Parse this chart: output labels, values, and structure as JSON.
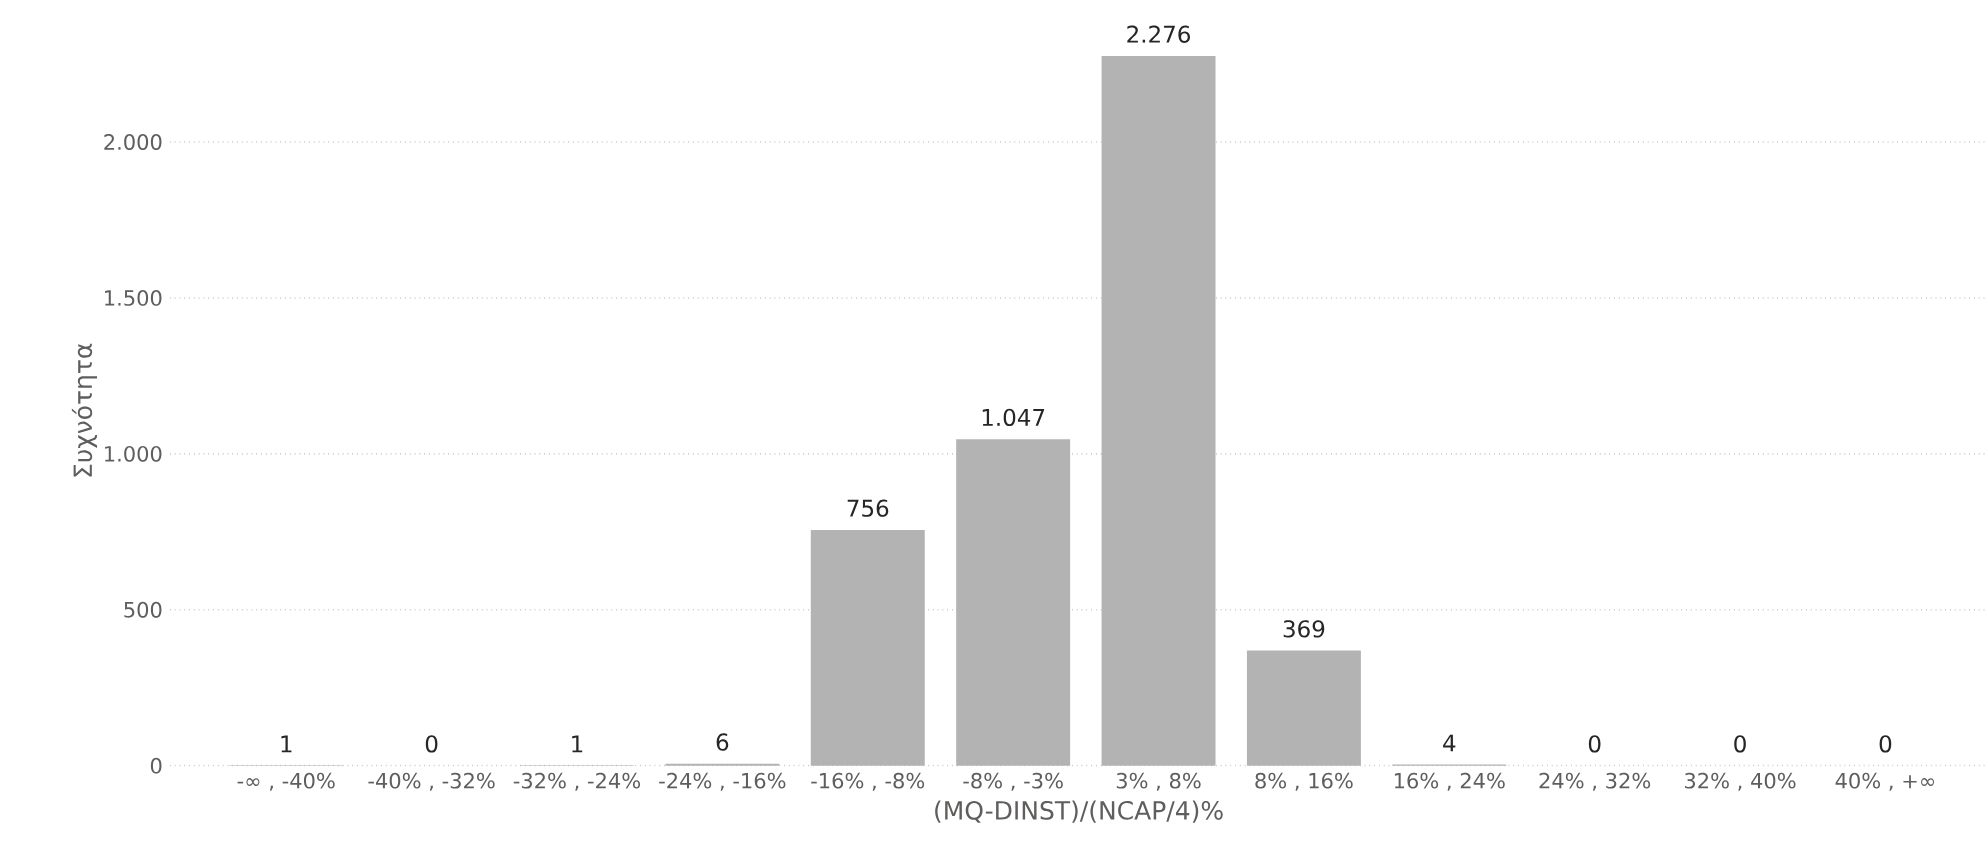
{
  "chart_data": {
    "type": "bar",
    "categories": [
      "-∞ , -40%",
      "-40% , -32%",
      "-32% , -24%",
      "-24% , -16%",
      "-16% , -8%",
      "-8% , -3%",
      "3% , 8%",
      "8% , 16%",
      "16% , 24%",
      "24% , 32%",
      "32% , 40%",
      "40% , +∞"
    ],
    "values": [
      1,
      0,
      1,
      6,
      756,
      1047,
      2276,
      369,
      4,
      0,
      0,
      0
    ],
    "value_labels": [
      "1",
      "0",
      "1",
      "6",
      "756",
      "1.047",
      "2.276",
      "369",
      "4",
      "0",
      "0",
      "0"
    ],
    "color": "#b3b3b3",
    "xlabel": "(MQ-DINST)/(NCAP/4)%",
    "ylabel": "Συχνότητα",
    "ylim": [
      0,
      2276
    ],
    "yticks": [
      0,
      500,
      {
        "value": 1000,
        "label": "1.000"
      },
      {
        "value": 1500,
        "label": "1.500"
      },
      {
        "value": 2000,
        "label": "2.000"
      }
    ],
    "grid": "y"
  }
}
